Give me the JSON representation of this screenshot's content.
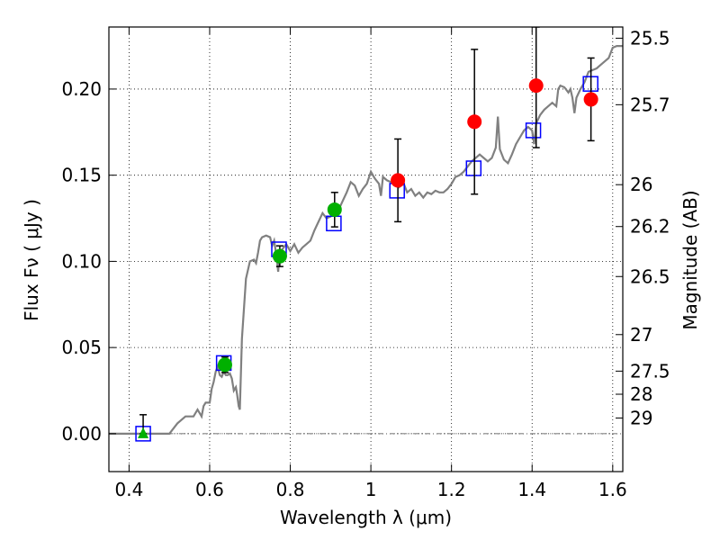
{
  "chart_data": {
    "type": "scatter",
    "xlabel": "Wavelength  λ (μm)",
    "ylabel": "Flux  Fν  ( μJy )",
    "y2label": "Magnitude (AB)",
    "xlim": [
      0.35,
      1.625
    ],
    "ylim": [
      -0.022,
      0.236
    ],
    "x_ticks": [
      0.4,
      0.6,
      0.8,
      1.0,
      1.2,
      1.4,
      1.6
    ],
    "x_tick_labels": [
      "0.4",
      "0.6",
      "0.8",
      "1",
      "1.2",
      "1.4",
      "1.6"
    ],
    "y_ticks": [
      0.0,
      0.05,
      0.1,
      0.15,
      0.2
    ],
    "y_tick_labels": [
      "0.00",
      "0.05",
      "0.10",
      "0.15",
      "0.20"
    ],
    "mag_ticks": [
      {
        "label": "25.5",
        "flux": 0.2295
      },
      {
        "label": "25.7",
        "flux": 0.1909
      },
      {
        "label": "26",
        "flux": 0.1445
      },
      {
        "label": "26.2",
        "flux": 0.1202
      },
      {
        "label": "26.5",
        "flux": 0.0912
      },
      {
        "label": "27",
        "flux": 0.0575
      },
      {
        "label": "27.5",
        "flux": 0.0363
      },
      {
        "label": "28",
        "flux": 0.0229
      },
      {
        "label": "29",
        "flux": 0.0091
      }
    ],
    "grid": true,
    "colors": {
      "model": "#808080",
      "model_photometry": "#0000ff",
      "detections": "#00b000",
      "upper_points": "#ff0000",
      "errorbar": "#000000"
    },
    "series": [
      {
        "kind": "line",
        "points": [
          [
            0.35,
            0.0
          ],
          [
            0.49,
            0.0
          ],
          [
            0.5,
            0.0
          ],
          [
            0.52,
            0.006
          ],
          [
            0.54,
            0.01
          ],
          [
            0.56,
            0.01
          ],
          [
            0.57,
            0.014
          ],
          [
            0.58,
            0.01
          ],
          [
            0.585,
            0.016
          ],
          [
            0.59,
            0.018
          ],
          [
            0.6,
            0.018
          ],
          [
            0.605,
            0.026
          ],
          [
            0.61,
            0.03
          ],
          [
            0.615,
            0.036
          ],
          [
            0.62,
            0.039
          ],
          [
            0.625,
            0.034
          ],
          [
            0.63,
            0.033
          ],
          [
            0.635,
            0.036
          ],
          [
            0.64,
            0.034
          ],
          [
            0.645,
            0.034
          ],
          [
            0.65,
            0.035
          ],
          [
            0.655,
            0.032
          ],
          [
            0.66,
            0.025
          ],
          [
            0.665,
            0.027
          ],
          [
            0.668,
            0.023
          ],
          [
            0.672,
            0.016
          ],
          [
            0.675,
            0.014
          ],
          [
            0.68,
            0.055
          ],
          [
            0.69,
            0.09
          ],
          [
            0.7,
            0.1
          ],
          [
            0.71,
            0.101
          ],
          [
            0.715,
            0.099
          ],
          [
            0.72,
            0.105
          ],
          [
            0.725,
            0.112
          ],
          [
            0.73,
            0.114
          ],
          [
            0.74,
            0.115
          ],
          [
            0.75,
            0.114
          ],
          [
            0.755,
            0.109
          ],
          [
            0.76,
            0.112
          ],
          [
            0.765,
            0.104
          ],
          [
            0.77,
            0.094
          ],
          [
            0.772,
            0.1
          ],
          [
            0.78,
            0.107
          ],
          [
            0.79,
            0.11
          ],
          [
            0.8,
            0.106
          ],
          [
            0.81,
            0.11
          ],
          [
            0.82,
            0.105
          ],
          [
            0.83,
            0.108
          ],
          [
            0.84,
            0.11
          ],
          [
            0.85,
            0.112
          ],
          [
            0.86,
            0.118
          ],
          [
            0.87,
            0.123
          ],
          [
            0.88,
            0.128
          ],
          [
            0.89,
            0.125
          ],
          [
            0.9,
            0.126
          ],
          [
            0.91,
            0.128
          ],
          [
            0.92,
            0.13
          ],
          [
            0.93,
            0.135
          ],
          [
            0.94,
            0.14
          ],
          [
            0.95,
            0.146
          ],
          [
            0.96,
            0.144
          ],
          [
            0.97,
            0.138
          ],
          [
            0.98,
            0.142
          ],
          [
            0.99,
            0.145
          ],
          [
            1.0,
            0.152
          ],
          [
            1.01,
            0.148
          ],
          [
            1.02,
            0.145
          ],
          [
            1.025,
            0.138
          ],
          [
            1.03,
            0.149
          ],
          [
            1.04,
            0.147
          ],
          [
            1.05,
            0.146
          ],
          [
            1.06,
            0.144
          ],
          [
            1.07,
            0.143
          ],
          [
            1.08,
            0.146
          ],
          [
            1.09,
            0.14
          ],
          [
            1.1,
            0.142
          ],
          [
            1.11,
            0.138
          ],
          [
            1.12,
            0.14
          ],
          [
            1.13,
            0.137
          ],
          [
            1.14,
            0.14
          ],
          [
            1.15,
            0.139
          ],
          [
            1.16,
            0.141
          ],
          [
            1.17,
            0.14
          ],
          [
            1.18,
            0.14
          ],
          [
            1.19,
            0.142
          ],
          [
            1.2,
            0.145
          ],
          [
            1.21,
            0.149
          ],
          [
            1.22,
            0.15
          ],
          [
            1.23,
            0.152
          ],
          [
            1.24,
            0.155
          ],
          [
            1.25,
            0.158
          ],
          [
            1.26,
            0.16
          ],
          [
            1.27,
            0.162
          ],
          [
            1.28,
            0.16
          ],
          [
            1.29,
            0.158
          ],
          [
            1.3,
            0.16
          ],
          [
            1.31,
            0.166
          ],
          [
            1.315,
            0.184
          ],
          [
            1.32,
            0.165
          ],
          [
            1.33,
            0.159
          ],
          [
            1.34,
            0.157
          ],
          [
            1.35,
            0.162
          ],
          [
            1.36,
            0.168
          ],
          [
            1.37,
            0.172
          ],
          [
            1.38,
            0.176
          ],
          [
            1.39,
            0.178
          ],
          [
            1.4,
            0.176
          ],
          [
            1.405,
            0.168
          ],
          [
            1.41,
            0.18
          ],
          [
            1.42,
            0.185
          ],
          [
            1.43,
            0.188
          ],
          [
            1.44,
            0.19
          ],
          [
            1.45,
            0.192
          ],
          [
            1.46,
            0.19
          ],
          [
            1.465,
            0.2
          ],
          [
            1.47,
            0.202
          ],
          [
            1.48,
            0.201
          ],
          [
            1.49,
            0.198
          ],
          [
            1.495,
            0.2
          ],
          [
            1.5,
            0.195
          ],
          [
            1.505,
            0.186
          ],
          [
            1.51,
            0.195
          ],
          [
            1.52,
            0.2
          ],
          [
            1.53,
            0.204
          ],
          [
            1.54,
            0.21
          ],
          [
            1.55,
            0.211
          ],
          [
            1.56,
            0.212
          ],
          [
            1.57,
            0.214
          ],
          [
            1.58,
            0.216
          ],
          [
            1.59,
            0.218
          ],
          [
            1.6,
            0.224
          ],
          [
            1.61,
            0.225
          ],
          [
            1.625,
            0.225
          ]
        ]
      },
      {
        "kind": "squares",
        "points": [
          [
            0.435,
            0.0
          ],
          [
            0.635,
            0.041
          ],
          [
            0.772,
            0.107
          ],
          [
            0.908,
            0.122
          ],
          [
            1.065,
            0.141
          ],
          [
            1.255,
            0.154
          ],
          [
            1.403,
            0.176
          ],
          [
            1.545,
            0.203
          ]
        ]
      },
      {
        "kind": "triangle",
        "points": [
          [
            0.435,
            0.0
          ]
        ],
        "err": [
          [
            0.435,
            0.0,
            0.011
          ]
        ]
      },
      {
        "kind": "green_circles",
        "points": [
          [
            0.638,
            0.04
          ],
          [
            0.774,
            0.103
          ],
          [
            0.91,
            0.13
          ]
        ],
        "err": [
          [
            0.638,
            0.0355,
            0.0445
          ],
          [
            0.774,
            0.097,
            0.109
          ],
          [
            0.91,
            0.12,
            0.14
          ]
        ]
      },
      {
        "kind": "red_circles",
        "points": [
          [
            1.067,
            0.147
          ],
          [
            1.257,
            0.181
          ],
          [
            1.41,
            0.202
          ],
          [
            1.546,
            0.194
          ]
        ],
        "err": [
          [
            1.067,
            0.123,
            0.171
          ],
          [
            1.257,
            0.139,
            0.223
          ],
          [
            1.41,
            0.166,
            0.236
          ],
          [
            1.546,
            0.17,
            0.218
          ]
        ]
      }
    ]
  }
}
